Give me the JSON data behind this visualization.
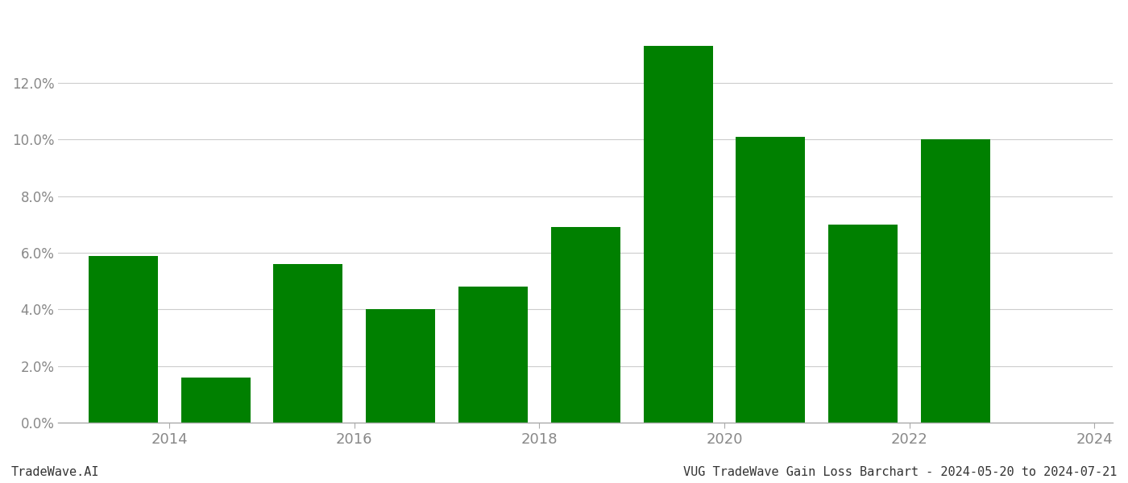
{
  "years": [
    2013,
    2014,
    2015,
    2016,
    2017,
    2018,
    2019,
    2020,
    2021,
    2022,
    2023
  ],
  "values": [
    0.059,
    0.016,
    0.056,
    0.04,
    0.048,
    0.069,
    0.133,
    0.101,
    0.07,
    0.1,
    0.0
  ],
  "bar_color": "#008000",
  "background_color": "#ffffff",
  "ylim": [
    0,
    0.145
  ],
  "yticks": [
    0.0,
    0.02,
    0.04,
    0.06,
    0.08,
    0.1,
    0.12
  ],
  "footer_left": "TradeWave.AI",
  "footer_right": "VUG TradeWave Gain Loss Barchart - 2024-05-20 to 2024-07-21",
  "grid_color": "#cccccc",
  "tick_color": "#888888",
  "bar_width": 0.75,
  "xtick_labels": [
    "2014",
    "2016",
    "2018",
    "2020",
    "2022",
    "2024"
  ],
  "xtick_positions": [
    0.5,
    2.5,
    4.5,
    6.5,
    8.5,
    10.5
  ]
}
